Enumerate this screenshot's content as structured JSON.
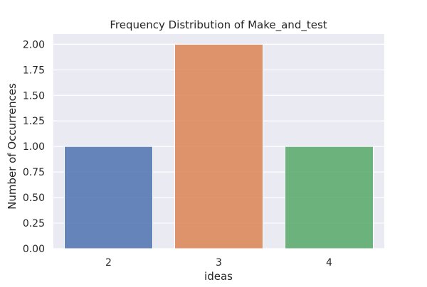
{
  "chart_data": {
    "type": "bar",
    "title": "Frequency Distribution of Make_and_test",
    "xlabel": "ideas",
    "ylabel": "Number of Occurrences",
    "categories": [
      "2",
      "3",
      "4"
    ],
    "values": [
      1,
      2,
      1
    ],
    "colors": [
      "#4c72b0",
      "#dd8452",
      "#55a868"
    ],
    "ylim": [
      0,
      2.1
    ],
    "yticks": [
      "0.00",
      "0.25",
      "0.50",
      "0.75",
      "1.00",
      "1.25",
      "1.50",
      "1.75",
      "2.00"
    ],
    "grid": true,
    "background_color": "#eaeaf2",
    "grid_color": "#ffffff"
  }
}
